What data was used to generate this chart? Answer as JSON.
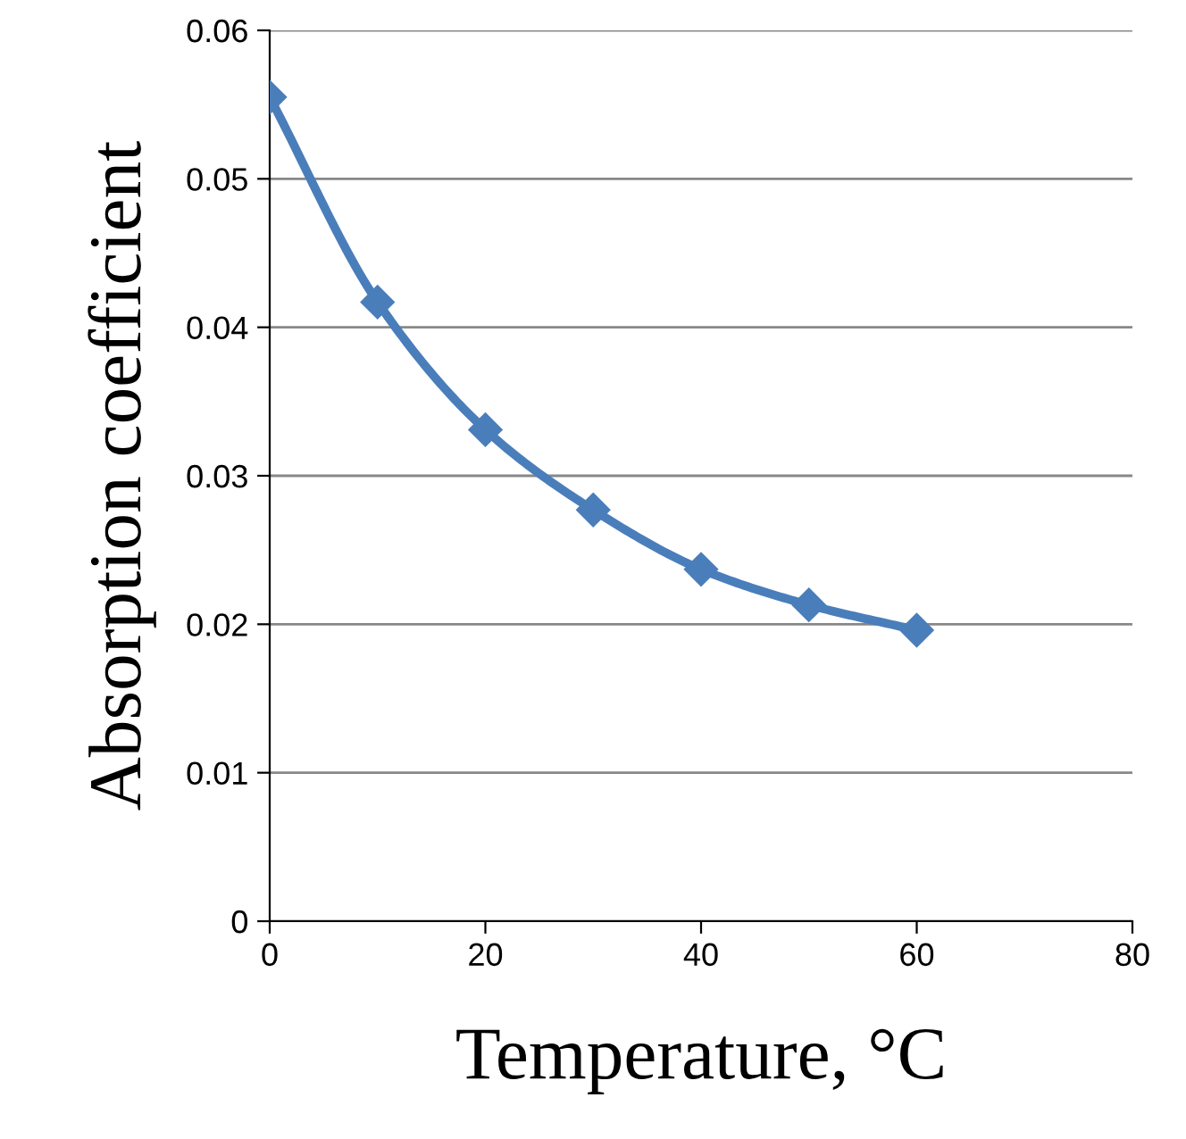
{
  "chart_data": {
    "type": "line",
    "xlabel": "Temperature, °C",
    "ylabel": "Absorption coefficient",
    "x": [
      0,
      10,
      20,
      30,
      40,
      50,
      60
    ],
    "series": [
      {
        "color": "#4a7ebb",
        "values": [
          0.0555,
          0.0417,
          0.0331,
          0.0277,
          0.0237,
          0.0213,
          0.0196
        ]
      }
    ],
    "xlim": [
      0,
      80
    ],
    "xticks": [
      0,
      20,
      40,
      60,
      80
    ],
    "ylim": [
      0,
      0.06
    ],
    "yticks": [
      {
        "value": 0,
        "label": "0"
      },
      0.01,
      0.02,
      0.03,
      0.04,
      0.05,
      0.06
    ],
    "grid": "y",
    "marker": "diamond",
    "line_style": "solid"
  }
}
